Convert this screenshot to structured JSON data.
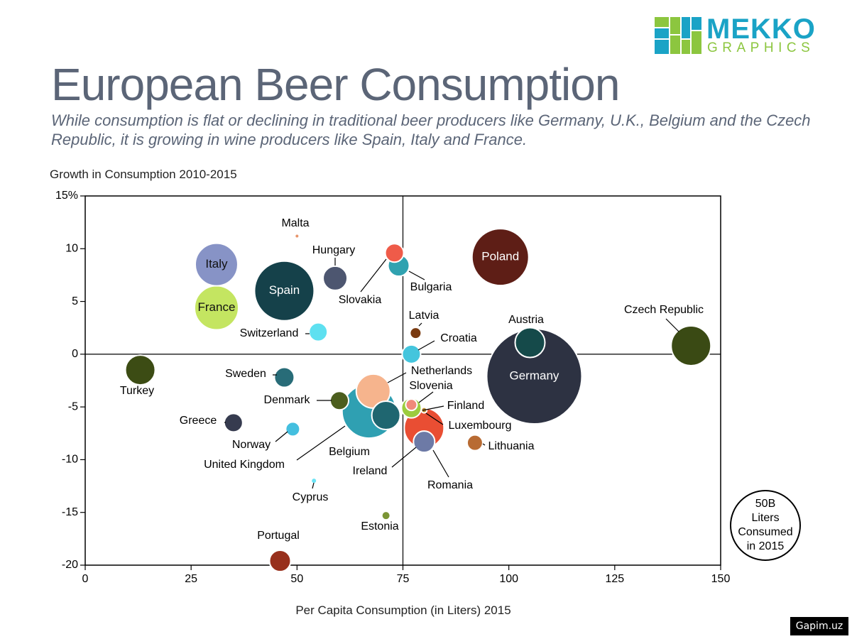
{
  "header": {
    "title": "European Beer Consumption",
    "subtitle": "While consumption is flat or declining in traditional beer producers like Germany, U.K., Belgium and the Czech Republic, it is growing in wine producers like Spain, Italy and France."
  },
  "logo": {
    "word": "MEKKO",
    "sub": "GRAPHICS",
    "colors": [
      "#8cc63f",
      "#1aa3c6"
    ]
  },
  "watermark": "Gapim.uz",
  "chart_data": {
    "type": "scatter",
    "title": "European Beer Consumption",
    "xlabel": "Per Capita Consumption (in Liters) 2015",
    "ylabel": "Growth in Consumption 2010-2015",
    "xlim": [
      0,
      150
    ],
    "ylim": [
      -20,
      15
    ],
    "x_ticks": [
      "0",
      "25",
      "50",
      "75",
      "100",
      "125",
      "150"
    ],
    "y_ticks": [
      "15%",
      "10",
      "5",
      "0",
      "-5",
      "-10",
      "-15",
      "-20"
    ],
    "size_legend": [
      "50B",
      "Liters",
      "Consumed",
      "in 2015"
    ],
    "points": [
      {
        "name": "Germany",
        "x": 106,
        "y": -2.1,
        "r": 67,
        "color": "#2d3242",
        "label_inside": true
      },
      {
        "name": "United Kingdom",
        "x": 67,
        "y": -5.4,
        "r": 38,
        "color": "#2fa0b2"
      },
      {
        "name": "Poland",
        "x": 98,
        "y": 9.2,
        "r": 40,
        "color": "#5e1e16",
        "label_inside": true
      },
      {
        "name": "Spain",
        "x": 47,
        "y": 6,
        "r": 42,
        "color": "#15414a",
        "label_inside": true
      },
      {
        "name": "Italy",
        "x": 31,
        "y": 8.5,
        "r": 30,
        "color": "#8793c6",
        "label_inside": true
      },
      {
        "name": "France",
        "x": 31,
        "y": 4.4,
        "r": 31,
        "color": "#c4e561",
        "label_inside": true
      },
      {
        "name": "Romania",
        "x": 80,
        "y": -7,
        "r": 28,
        "color": "#e94e33"
      },
      {
        "name": "Czech Republic",
        "x": 143,
        "y": 0.8,
        "r": 28,
        "color": "#3a4a14"
      },
      {
        "name": "Netherlands",
        "x": 68,
        "y": -3.5,
        "r": 24,
        "color": "#f6b48d"
      },
      {
        "name": "Belgium",
        "x": 71,
        "y": -5.8,
        "r": 20,
        "color": "#1f6670"
      },
      {
        "name": "Austria",
        "x": 105,
        "y": 1.1,
        "r": 21,
        "color": "#154a4a"
      },
      {
        "name": "Turkey",
        "x": 13,
        "y": -1.5,
        "r": 21,
        "color": "#3c4c14"
      },
      {
        "name": "Portugal",
        "x": 46,
        "y": -19.6,
        "r": 15,
        "color": "#98301c"
      },
      {
        "name": "Hungary",
        "x": 59,
        "y": 7.2,
        "r": 17,
        "color": "#4d5670"
      },
      {
        "name": "Bulgaria",
        "x": 74,
        "y": 8.4,
        "r": 15,
        "color": "#30a2b0"
      },
      {
        "name": "Slovakia",
        "x": 73,
        "y": 9.6,
        "r": 13,
        "color": "#ef5b49"
      },
      {
        "name": "Switzerland",
        "x": 55,
        "y": 2.1,
        "r": 13,
        "color": "#5ee0f0"
      },
      {
        "name": "Sweden",
        "x": 47,
        "y": -2.2,
        "r": 14,
        "color": "#286c78"
      },
      {
        "name": "Denmark",
        "x": 60,
        "y": -4.4,
        "r": 13,
        "color": "#4c5e1e"
      },
      {
        "name": "Greece",
        "x": 35,
        "y": -6.5,
        "r": 13,
        "color": "#363b4f"
      },
      {
        "name": "Ireland",
        "x": 80,
        "y": -8.3,
        "r": 15,
        "color": "#6d7aa6"
      },
      {
        "name": "Croatia",
        "x": 77,
        "y": 0,
        "r": 13,
        "color": "#44c5dd"
      },
      {
        "name": "Slovenia",
        "x": 77,
        "y": -5.1,
        "r": 14,
        "color": "#9ccc3e"
      },
      {
        "name": "Finland",
        "x": 77,
        "y": -4.8,
        "r": 8,
        "color": "#f08a7a"
      },
      {
        "name": "Lithuania",
        "x": 92,
        "y": -8.4,
        "r": 11,
        "color": "#b86b33"
      },
      {
        "name": "Norway",
        "x": 49,
        "y": -7.1,
        "r": 10,
        "color": "#44bfdf"
      },
      {
        "name": "Latvia",
        "x": 78,
        "y": 2,
        "r": 8,
        "color": "#7a3a10"
      },
      {
        "name": "Luxembourg",
        "x": 80,
        "y": -5.3,
        "r": 4,
        "color": "#b8862e"
      },
      {
        "name": "Estonia",
        "x": 71,
        "y": -15.3,
        "r": 6,
        "color": "#7b9535"
      },
      {
        "name": "Cyprus",
        "x": 54,
        "y": -12,
        "r": 4,
        "color": "#6be3f5"
      },
      {
        "name": "Malta",
        "x": 50,
        "y": 11.2,
        "r": 3,
        "color": "#e8956b"
      }
    ]
  }
}
